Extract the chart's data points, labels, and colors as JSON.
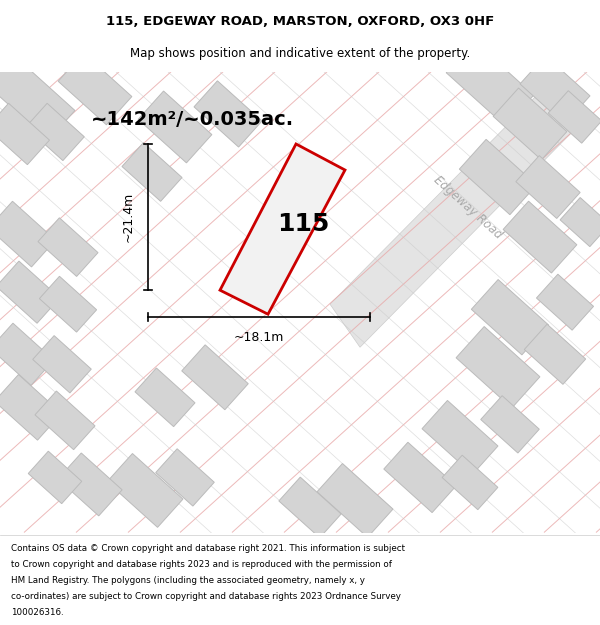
{
  "title_line1": "115, EDGEWAY ROAD, MARSTON, OXFORD, OX3 0HF",
  "title_line2": "Map shows position and indicative extent of the property.",
  "area_text": "~142m²/~0.035ac.",
  "road_label": "Edgeway Road",
  "plot_number": "115",
  "width_label": "~18.1m",
  "height_label": "~21.4m",
  "footer_text": "Contains OS data © Crown copyright and database right 2021. This information is subject to Crown copyright and database rights 2023 and is reproduced with the permission of HM Land Registry. The polygons (including the associated geometry, namely x, y co-ordinates) are subject to Crown copyright and database rights 2023 Ordnance Survey 100026316.",
  "map_bg": "#eeeeee",
  "plot_outline_color": "#cc0000",
  "building_fill": "#d4d4d4",
  "building_stroke": "#bbbbbb",
  "pink_line_color": "#e8a8a8",
  "gray_line_color": "#c8c8c8",
  "road_fill": "#e2e2e2"
}
